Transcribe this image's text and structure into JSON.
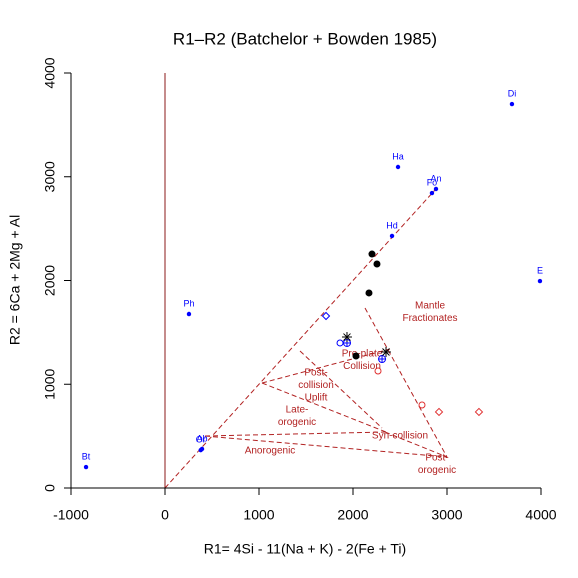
{
  "chart_data": {
    "type": "scatter",
    "title": "R1–R2 (Batchelor + Bowden 1985)",
    "x_label": "R1= 4Si - 11(Na + K) - 2(Fe + Ti)",
    "y_label": "R2 = 6Ca + 2Mg + Al",
    "xlim": [
      -1000,
      4000
    ],
    "ylim": [
      0,
      4000
    ],
    "xticks": [
      -1000,
      0,
      1000,
      2000,
      3000,
      4000
    ],
    "yticks": [
      0,
      1000,
      2000,
      3000,
      4000
    ],
    "points": [
      {
        "x": -840,
        "y": 202,
        "label": "Bt",
        "shape": "dot",
        "color": "#0000ff"
      },
      {
        "x": 394,
        "y": 376,
        "label": "Ab",
        "shape": "dot",
        "color": "#0000ff"
      },
      {
        "x": 380,
        "y": 365,
        "label": "Or",
        "shape": "dot",
        "color": "#0000ff"
      },
      {
        "x": 255,
        "y": 1677,
        "label": "Ph",
        "shape": "dot",
        "color": "#0000ff"
      },
      {
        "x": 2479,
        "y": 3094,
        "label": "Ha",
        "shape": "dot",
        "color": "#0000ff"
      },
      {
        "x": 3691,
        "y": 3701,
        "label": "Di",
        "shape": "dot",
        "color": "#0000ff"
      },
      {
        "x": 2840,
        "y": 2843,
        "label": "Fo",
        "shape": "dot",
        "color": "#0000ff"
      },
      {
        "x": 2883,
        "y": 2882,
        "label": "An",
        "shape": "dot",
        "color": "#0000ff"
      },
      {
        "x": 2415,
        "y": 2429,
        "label": "Hd",
        "shape": "dot",
        "color": "#0000ff"
      },
      {
        "x": 3989,
        "y": 1995,
        "label": "E",
        "shape": "dot",
        "color": "#0000ff"
      },
      {
        "x": 2202,
        "y": 2255,
        "shape": "filled",
        "color": "#000000"
      },
      {
        "x": 2255,
        "y": 2159,
        "shape": "filled",
        "color": "#000000"
      },
      {
        "x": 2170,
        "y": 1880,
        "shape": "filled",
        "color": "#000000"
      },
      {
        "x": 2032,
        "y": 1272,
        "shape": "filled",
        "color": "#000000"
      },
      {
        "x": 1713,
        "y": 1658,
        "shape": "open-diamond",
        "color": "#0000ff"
      },
      {
        "x": 1862,
        "y": 1398,
        "shape": "open",
        "color": "#0000ff"
      },
      {
        "x": 1936,
        "y": 1398,
        "shape": "open-cross",
        "color": "#0000ff"
      },
      {
        "x": 2309,
        "y": 1243,
        "shape": "open-cross",
        "color": "#0000ff"
      },
      {
        "x": 1936,
        "y": 1455,
        "shape": "star",
        "color": "#000000"
      },
      {
        "x": 2351,
        "y": 1311,
        "shape": "star",
        "color": "#000000"
      },
      {
        "x": 2266,
        "y": 1128,
        "shape": "open",
        "color": "#e03030"
      },
      {
        "x": 2734,
        "y": 800,
        "shape": "open",
        "color": "#e03030"
      },
      {
        "x": 2915,
        "y": 733,
        "shape": "open-diamond",
        "color": "#e03030"
      },
      {
        "x": 3340,
        "y": 733,
        "shape": "open-diamond",
        "color": "#e03030"
      }
    ],
    "fields": [
      {
        "lines": [
          "Mantle",
          "Fractionates"
        ]
      },
      {
        "lines": [
          "Pre-plate",
          "Collision"
        ]
      },
      {
        "lines": [
          "Post-",
          "collision",
          "Uplift"
        ]
      },
      {
        "lines": [
          "Late-",
          "orogenic"
        ]
      },
      {
        "lines": [
          "Syn-collision"
        ]
      },
      {
        "lines": [
          "Anorogenic"
        ]
      },
      {
        "lines": [
          "Post-",
          "orogenic"
        ]
      }
    ]
  }
}
